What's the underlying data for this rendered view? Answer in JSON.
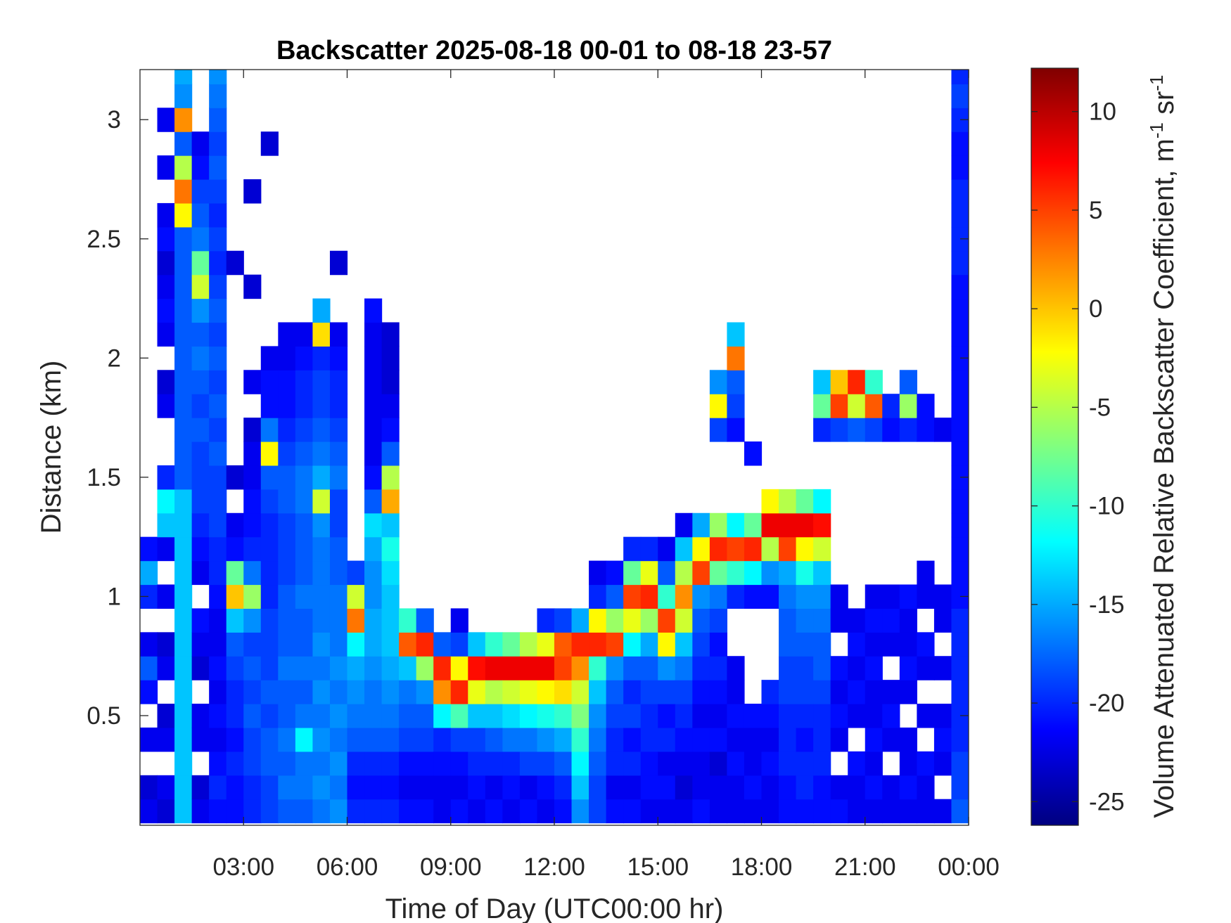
{
  "chart_data": {
    "type": "heatmap",
    "title": "Backscatter 2025-08-18 00-01 to 08-18 23-57",
    "xlabel": "Time of Day (UTC00:00 hr)",
    "ylabel": "Distance (km)",
    "xlim": [
      0,
      24
    ],
    "ylim": [
      0.04,
      3.21
    ],
    "xticks": [
      3,
      6,
      9,
      12,
      15,
      18,
      21,
      24
    ],
    "xtick_labels": [
      "03:00",
      "06:00",
      "09:00",
      "12:00",
      "15:00",
      "18:00",
      "21:00",
      "00:00"
    ],
    "yticks": [
      0.5,
      1,
      1.5,
      2,
      2.5,
      3
    ],
    "ytick_labels": [
      "0.5",
      "1",
      "1.5",
      "2",
      "2.5",
      "3"
    ],
    "grid": false,
    "colormap": "jet",
    "clim": [
      -26.2,
      12.2
    ],
    "colorbar": {
      "ticks": [
        -25,
        -20,
        -15,
        -10,
        -5,
        0,
        5,
        10
      ],
      "tick_labels": [
        "-25",
        "-20",
        "-15",
        "-10",
        "-5",
        "0",
        "5",
        "10"
      ],
      "label": "Volume Attenuated Relative Backscatter Coefficient, m",
      "label_sup1": "-1",
      "label_mid": " sr",
      "label_sup2": "-1",
      "placement": "right"
    },
    "x_bin_hours": 0.5,
    "time_bin_centers_hr": [
      0.25,
      0.75,
      1.25,
      1.75,
      2.25,
      2.75,
      3.25,
      3.75,
      4.25,
      4.75,
      5.25,
      5.75,
      6.25,
      6.75,
      7.25,
      7.75,
      8.25,
      8.75,
      9.25,
      9.75,
      10.25,
      10.75,
      11.25,
      11.75,
      12.25,
      12.75,
      13.25,
      13.75,
      14.25,
      14.75,
      15.25,
      15.75,
      16.25,
      16.75,
      17.25,
      17.75,
      18.25,
      18.75,
      19.25,
      19.75,
      20.25,
      20.75,
      21.25,
      21.75,
      22.25,
      22.75,
      23.25,
      23.75
    ],
    "height_bin_centers_km": [
      0.1,
      0.2,
      0.3,
      0.4,
      0.5,
      0.6,
      0.7,
      0.8,
      0.9,
      1.0,
      1.1,
      1.2,
      1.3,
      1.4,
      1.5,
      1.6,
      1.7,
      1.8,
      1.9,
      2.0,
      2.1,
      2.2,
      2.3,
      2.4,
      2.5,
      2.6,
      2.7,
      2.8,
      2.9,
      3.0,
      3.1,
      3.2
    ],
    "values": [
      [
        -22,
        -23,
        null,
        -22,
        null,
        -21,
        -18,
        -22,
        null,
        -20,
        -15,
        -21
      ],
      [
        -23,
        -22,
        null,
        -22,
        -23,
        null,
        -22,
        -23,
        null,
        -22,
        null,
        -22,
        -14,
        -12,
        -20,
        null,
        null,
        -22,
        -23,
        null,
        -22,
        -21,
        -22,
        -23,
        -21,
        -22,
        null,
        -22,
        null,
        -22
      ],
      [
        -14,
        -14,
        -14,
        -14,
        -14,
        -14,
        -14,
        -14,
        -14,
        -14,
        -14,
        -14,
        -14,
        -14,
        -18,
        -18,
        -18,
        -18,
        -18,
        -18,
        -18,
        -18,
        -18,
        -18,
        -18,
        -2,
        3,
        -5,
        -18,
        2,
        -16,
        -15
      ],
      [
        -22,
        -23,
        null,
        -22,
        -22,
        null,
        -23,
        -22,
        -21,
        null,
        -22,
        -21,
        -20,
        -19,
        -19,
        -19,
        -18,
        -19,
        -18,
        -17,
        -18,
        -16,
        -4,
        -8,
        -17,
        -18,
        -19,
        -21,
        -22
      ],
      [
        -21,
        -20,
        -21,
        -22,
        -21,
        -22,
        -21,
        -22,
        -22,
        -21,
        -20,
        -20,
        -19,
        -19,
        -19,
        -18,
        -19,
        -18,
        -19,
        -18,
        -19,
        -18,
        -19,
        -20,
        -19,
        -20,
        -19,
        -18,
        -19,
        -18,
        -17,
        -16
      ],
      [
        -21,
        -21,
        -20,
        -21,
        -20,
        -20,
        -19,
        -18,
        -14,
        0,
        -8,
        -21,
        -22,
        null,
        -23,
        null,
        null,
        null,
        null,
        null,
        null,
        null,
        null,
        -23
      ],
      [
        -20,
        -20,
        -19,
        -19,
        -18,
        -19,
        -18,
        -19,
        -16,
        -6,
        -17,
        -20,
        -21,
        -21,
        -22,
        -22,
        -23,
        null,
        -22,
        null,
        null,
        null,
        -23,
        null,
        null,
        null,
        -23
      ],
      [
        -19,
        -19,
        -18,
        -18,
        -19,
        -18,
        -19,
        -19,
        -19,
        -20,
        -20,
        -20,
        -20,
        -19,
        -18,
        -2,
        -17,
        -21,
        -21,
        -22,
        null,
        null,
        null,
        null,
        null,
        null,
        null,
        null,
        -23
      ],
      [
        -18,
        -17,
        -18,
        -17,
        -18,
        -18,
        -17,
        -18,
        -18,
        -18,
        -19,
        -19,
        -19,
        -18,
        -18,
        -19,
        -20,
        -21,
        -21,
        -22,
        -22
      ],
      [
        -18,
        -17,
        -17,
        -12,
        -17,
        -18,
        -17,
        -18,
        -18,
        -17,
        -18,
        -18,
        -18,
        -17,
        -17,
        -18,
        -19,
        -20,
        -20,
        -21,
        -22
      ],
      [
        -17,
        -16,
        -17,
        -16,
        -17,
        -16,
        -17,
        -16,
        -17,
        -17,
        -17,
        -17,
        -16,
        -4,
        -15,
        -17,
        -18,
        -19,
        -19,
        -20,
        -1,
        -15
      ],
      [
        -16,
        -17,
        -16,
        -17,
        -16,
        -17,
        -16,
        -17,
        -17,
        -17,
        -18,
        -18,
        -19,
        -19,
        -17,
        -18,
        -19,
        -20,
        -20,
        -21,
        -22,
        null,
        null,
        -23
      ],
      [
        -20,
        -21,
        -20,
        -18,
        -17,
        -16,
        -15,
        -12,
        3,
        -4,
        -19
      ],
      [
        -20,
        -21,
        -20,
        -18,
        -17,
        -17,
        -16,
        -15,
        -15,
        -16,
        -16,
        -15,
        -13,
        -18,
        -21,
        -22,
        -22,
        -22,
        -22,
        -22,
        -22,
        -21
      ],
      [
        -20,
        -21,
        -20,
        -18,
        -17,
        -16,
        -15,
        -14,
        -14,
        -14,
        -13,
        -11,
        -14,
        1,
        -5,
        -18,
        -21,
        -22,
        -23,
        -23,
        -23
      ],
      [
        -21,
        -22,
        -21,
        -19,
        -18,
        -17,
        -14,
        4,
        -10
      ],
      [
        -21,
        -22,
        -21,
        -19,
        -18,
        -16,
        -6,
        6,
        -18
      ],
      [
        -22,
        -22,
        -21,
        -20,
        -12,
        2,
        6,
        -18
      ],
      [
        -21,
        -22,
        -21,
        -19,
        -9,
        6,
        -2,
        -19,
        -22
      ],
      [
        -22,
        -21,
        -20,
        -19,
        -14,
        -3,
        7,
        -14
      ],
      [
        -21,
        -22,
        -20,
        -18,
        -14,
        -5,
        8,
        -10
      ],
      [
        -22,
        -21,
        -20,
        -17,
        -13,
        -4,
        8,
        -8
      ],
      [
        -21,
        -22,
        -19,
        -17,
        -12,
        -3,
        8,
        -5
      ],
      [
        -22,
        -21,
        -19,
        -16,
        -11,
        -2,
        8,
        -3,
        -20
      ],
      [
        -21,
        -20,
        -18,
        -15,
        -10,
        -1,
        5,
        4,
        -19
      ],
      [
        -16,
        -14,
        -12,
        -10,
        -7,
        -4,
        2,
        6,
        -15
      ],
      [
        -19,
        -19,
        -18,
        -17,
        -16,
        -14,
        -10,
        6,
        -2,
        -20,
        -22
      ],
      [
        -21,
        -22,
        -20,
        -20,
        -19,
        -18,
        -16,
        5,
        -6,
        -18,
        -21
      ],
      [
        -21,
        -22,
        -20,
        -21,
        -19,
        -20,
        -18,
        -12,
        -3,
        5,
        -8,
        -20
      ],
      [
        -22,
        -21,
        -21,
        -20,
        -20,
        -19,
        -18,
        -15,
        -6,
        6,
        -3,
        -20
      ],
      [
        -22,
        -21,
        -22,
        -20,
        -21,
        -19,
        -16,
        -2,
        5,
        -10,
        -18,
        -22
      ],
      [
        -22,
        -23,
        -22,
        -21,
        -20,
        -19,
        -17,
        -14,
        -4,
        2,
        -5,
        -14,
        -22
      ],
      [
        -21,
        -22,
        -22,
        -21,
        -22,
        -21,
        -20,
        -19,
        -18,
        -16,
        5,
        -2,
        -15
      ],
      [
        -22,
        -22,
        -23,
        -21,
        -22,
        -21,
        -20,
        -21,
        -19,
        -17,
        -8,
        6,
        -6,
        null,
        null,
        null,
        -19,
        -2,
        -16
      ],
      [
        -22,
        -22,
        -21,
        -22,
        -21,
        -22,
        -22,
        null,
        null,
        -20,
        -10,
        5,
        -12,
        null,
        null,
        null,
        -21,
        -19,
        -18,
        3,
        -14
      ],
      [
        -22,
        -21,
        -22,
        -22,
        -21,
        null,
        null,
        null,
        null,
        -21,
        -12,
        6,
        -8,
        null,
        null,
        -21
      ],
      [
        -22,
        -22,
        -21,
        -22,
        -21,
        -20,
        null,
        null,
        null,
        -21,
        -16,
        -5,
        8,
        -2
      ],
      [
        -21,
        -21,
        -20,
        -20,
        -20,
        -19,
        -19,
        -18,
        -18,
        -17,
        -15,
        5,
        8,
        -5
      ],
      [
        -21,
        -20,
        -20,
        -21,
        -20,
        -19,
        -19,
        -18,
        -17,
        -16,
        -11,
        -2,
        8,
        -8
      ],
      [
        -21,
        -21,
        -20,
        -20,
        -20,
        -19,
        -18,
        -18,
        -17,
        -16,
        -14,
        -4,
        7,
        -12,
        null,
        null,
        -20,
        -8,
        -14
      ],
      [
        -21,
        -22,
        null,
        -22,
        -21,
        -22,
        -21,
        null,
        -22,
        -22,
        null,
        null,
        null,
        null,
        null,
        null,
        -19,
        5,
        0
      ],
      [
        -22,
        -22,
        -21,
        null,
        -22,
        -21,
        -22,
        -21,
        -22,
        null,
        null,
        null,
        null,
        null,
        null,
        null,
        -18,
        -4,
        6
      ],
      [
        -22,
        -21,
        -22,
        -21,
        -22,
        -22,
        -21,
        -22,
        -21,
        -22,
        null,
        null,
        null,
        null,
        null,
        null,
        -19,
        4,
        -10
      ],
      [
        -22,
        -22,
        null,
        -22,
        -21,
        -22,
        null,
        -22,
        -21,
        -22,
        null,
        null,
        null,
        null,
        null,
        null,
        -21,
        -20
      ],
      [
        -22,
        -21,
        -22,
        -22,
        null,
        -22,
        -21,
        -22,
        -22,
        -21,
        null,
        null,
        null,
        null,
        null,
        null,
        -20,
        -6,
        -18
      ],
      [
        -22,
        -22,
        -21,
        null,
        -22,
        null,
        -22,
        -21,
        null,
        -22,
        -22,
        null,
        null,
        null,
        null,
        null,
        -21,
        -21
      ],
      [
        -22,
        null,
        -22,
        -21,
        -22,
        null,
        -22,
        null,
        -22,
        -22,
        null,
        null,
        null,
        null,
        null,
        null,
        -22
      ],
      [
        -18,
        -19,
        -19,
        -20,
        -20,
        -20,
        -20,
        -20,
        -20,
        -21,
        -21,
        -21,
        -21,
        -21,
        -21,
        -21,
        -21,
        -21,
        -21,
        -21,
        -21,
        -21,
        -21,
        -20,
        -20,
        -20,
        -20,
        -21,
        -21,
        -20,
        -19,
        -20
      ]
    ]
  }
}
